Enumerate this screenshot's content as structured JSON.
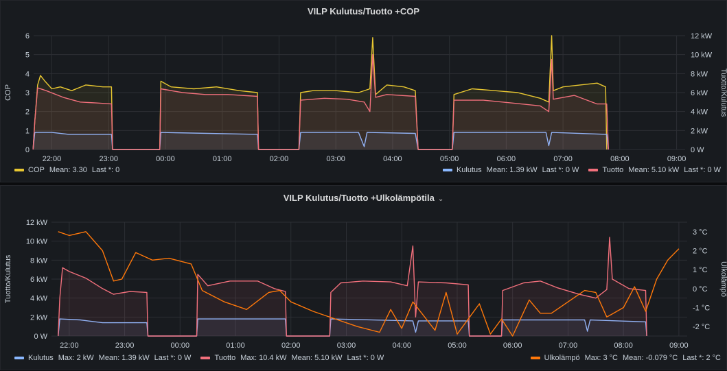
{
  "colors": {
    "cop": "#e8c731",
    "kulutus": "#8ab8ff",
    "tuotto": "#f2707c",
    "ulko": "#ff780a",
    "grid": "#2c2f34"
  },
  "panel1": {
    "title": "VILP Kulutus/Tuotto +COP",
    "legend": {
      "cop": {
        "name": "COP",
        "mean": "Mean: 3.30",
        "last": "Last *: 0"
      },
      "kulutus": {
        "name": "Kulutus",
        "mean": "Mean: 1.39 kW",
        "last": "Last *: 0 W"
      },
      "tuotto": {
        "name": "Tuotto",
        "mean": "Mean: 5.10 kW",
        "last": "Last *: 0 W"
      }
    }
  },
  "panel2": {
    "title": "VILP Kulutus/Tuotto +Ulkolämpötila",
    "title_chevron": "⌄",
    "legend": {
      "kulutus": {
        "name": "Kulutus",
        "max": "Max: 2 kW",
        "mean": "Mean: 1.39 kW",
        "last": "Last *: 0 W"
      },
      "tuotto": {
        "name": "Tuotto",
        "max": "Max: 10.4 kW",
        "mean": "Mean: 5.10 kW",
        "last": "Last *: 0 W"
      },
      "ulko": {
        "name": "Ulkolämpö",
        "max": "Max: 3 °C",
        "mean": "Mean: -0.079 °C",
        "last": "Last *: 2 °C"
      }
    }
  },
  "chart_data": [
    {
      "type": "line",
      "title": "VILP Kulutus/Tuotto +COP",
      "ylabel": "COP",
      "y2label": "Tuotto/Kulutus",
      "x_tick_labels": [
        "22:00",
        "23:00",
        "00:00",
        "01:00",
        "02:00",
        "03:00",
        "04:00",
        "05:00",
        "06:00",
        "07:00",
        "08:00",
        "09:00"
      ],
      "x_range_hours": [
        -0.32,
        11.15
      ],
      "ylim": [
        0,
        6
      ],
      "y_ticks": [
        "0",
        "1",
        "2",
        "3",
        "4",
        "5",
        "6"
      ],
      "y2lim": [
        0,
        12
      ],
      "y2_ticks": [
        "0 W",
        "2 kW",
        "4 kW",
        "6 kW",
        "8 kW",
        "10 kW",
        "12 kW"
      ],
      "series": [
        {
          "name": "COP",
          "axis": "left",
          "points": [
            [
              -0.33,
              0
            ],
            [
              -0.3,
              1.5
            ],
            [
              -0.25,
              3.4
            ],
            [
              -0.2,
              3.9
            ],
            [
              -0.12,
              3.6
            ],
            [
              0,
              3.2
            ],
            [
              0.15,
              3.3
            ],
            [
              0.35,
              3.1
            ],
            [
              0.6,
              3.4
            ],
            [
              0.9,
              3.3
            ],
            [
              1.05,
              3.3
            ],
            [
              1.07,
              0
            ],
            [
              1.9,
              0
            ],
            [
              1.92,
              3.6
            ],
            [
              2.1,
              3.3
            ],
            [
              2.5,
              3.2
            ],
            [
              2.9,
              3.3
            ],
            [
              3.3,
              3.1
            ],
            [
              3.62,
              3.0
            ],
            [
              3.64,
              0
            ],
            [
              4.35,
              0
            ],
            [
              4.38,
              3.0
            ],
            [
              4.6,
              3.1
            ],
            [
              5.0,
              3.1
            ],
            [
              5.4,
              3.0
            ],
            [
              5.6,
              3.2
            ],
            [
              5.65,
              5.9
            ],
            [
              5.7,
              2.9
            ],
            [
              5.9,
              3.4
            ],
            [
              6.2,
              3.3
            ],
            [
              6.4,
              3.1
            ],
            [
              6.45,
              0
            ],
            [
              7.05,
              0
            ],
            [
              7.08,
              2.9
            ],
            [
              7.4,
              3.2
            ],
            [
              7.8,
              3.1
            ],
            [
              8.2,
              3.0
            ],
            [
              8.6,
              2.7
            ],
            [
              8.75,
              2.5
            ],
            [
              8.8,
              6.0
            ],
            [
              8.83,
              3.1
            ],
            [
              9.0,
              3.3
            ],
            [
              9.3,
              3.4
            ],
            [
              9.6,
              3.5
            ],
            [
              9.75,
              3.3
            ],
            [
              9.77,
              0
            ]
          ]
        },
        {
          "name": "Kulutus",
          "axis": "right",
          "unit": "kW",
          "points": [
            [
              -0.33,
              0
            ],
            [
              -0.3,
              1.8
            ],
            [
              0,
              1.8
            ],
            [
              0.3,
              1.6
            ],
            [
              1.05,
              1.6
            ],
            [
              1.07,
              0
            ],
            [
              1.9,
              0
            ],
            [
              1.92,
              1.8
            ],
            [
              3.62,
              1.6
            ],
            [
              3.64,
              0
            ],
            [
              4.35,
              0
            ],
            [
              4.38,
              1.8
            ],
            [
              5.4,
              1.8
            ],
            [
              5.5,
              0.3
            ],
            [
              5.55,
              1.8
            ],
            [
              6.4,
              1.7
            ],
            [
              6.45,
              0
            ],
            [
              7.05,
              0
            ],
            [
              7.08,
              1.8
            ],
            [
              8.7,
              1.8
            ],
            [
              8.75,
              0.4
            ],
            [
              8.8,
              1.8
            ],
            [
              9.77,
              1.6
            ],
            [
              9.8,
              0
            ]
          ]
        },
        {
          "name": "Tuotto",
          "axis": "right",
          "unit": "kW",
          "points": [
            [
              -0.33,
              0
            ],
            [
              -0.3,
              3
            ],
            [
              -0.25,
              6.5
            ],
            [
              -0.1,
              6.2
            ],
            [
              0.2,
              5.5
            ],
            [
              0.5,
              5.0
            ],
            [
              0.8,
              4.9
            ],
            [
              1.05,
              4.8
            ],
            [
              1.07,
              0
            ],
            [
              1.9,
              0
            ],
            [
              1.92,
              6.4
            ],
            [
              2.3,
              6.0
            ],
            [
              2.7,
              5.8
            ],
            [
              3.1,
              5.8
            ],
            [
              3.62,
              5.6
            ],
            [
              3.64,
              0
            ],
            [
              4.35,
              0
            ],
            [
              4.38,
              5.2
            ],
            [
              4.8,
              5.4
            ],
            [
              5.2,
              5.3
            ],
            [
              5.5,
              5.0
            ],
            [
              5.6,
              4.0
            ],
            [
              5.65,
              10.0
            ],
            [
              5.7,
              5.5
            ],
            [
              5.9,
              5.8
            ],
            [
              6.4,
              5.6
            ],
            [
              6.45,
              0
            ],
            [
              7.05,
              0
            ],
            [
              7.08,
              5.2
            ],
            [
              7.6,
              5.2
            ],
            [
              8.1,
              4.9
            ],
            [
              8.6,
              4.6
            ],
            [
              8.75,
              4.0
            ],
            [
              8.8,
              9.5
            ],
            [
              8.83,
              5.3
            ],
            [
              9.2,
              5.7
            ],
            [
              9.6,
              4.8
            ],
            [
              9.77,
              4.8
            ],
            [
              9.8,
              0
            ]
          ]
        }
      ]
    },
    {
      "type": "line",
      "title": "VILP Kulutus/Tuotto +Ulkolämpötila",
      "ylabel": "Tuotto/Kulutus",
      "y2label": "Ulkolämpö",
      "x_tick_labels": [
        "22:00",
        "23:00",
        "00:00",
        "01:00",
        "02:00",
        "03:00",
        "04:00",
        "05:00",
        "06:00",
        "07:00",
        "08:00",
        "09:00"
      ],
      "x_range_hours": [
        -0.32,
        11.15
      ],
      "ylim": [
        0,
        12
      ],
      "y_ticks": [
        "0 W",
        "2 kW",
        "4 kW",
        "6 kW",
        "8 kW",
        "10 kW",
        "12 kW"
      ],
      "y2lim": [
        -2.5,
        3.5
      ],
      "y2_ticks": [
        "-2 °C",
        "-1 °C",
        "0 °C",
        "1 °C",
        "2 °C",
        "3 °C"
      ],
      "series": [
        {
          "name": "Kulutus",
          "axis": "left",
          "unit": "kW",
          "points": [
            [
              -0.2,
              0
            ],
            [
              -0.17,
              1.8
            ],
            [
              0.2,
              1.7
            ],
            [
              0.6,
              1.4
            ],
            [
              1.4,
              1.4
            ],
            [
              1.42,
              0
            ],
            [
              2.3,
              0
            ],
            [
              2.32,
              1.8
            ],
            [
              3.9,
              1.8
            ],
            [
              3.92,
              0
            ],
            [
              4.7,
              0
            ],
            [
              4.72,
              1.8
            ],
            [
              6.2,
              1.6
            ],
            [
              6.25,
              0.4
            ],
            [
              6.3,
              1.6
            ],
            [
              7.2,
              1.6
            ],
            [
              7.22,
              0
            ],
            [
              7.8,
              0
            ],
            [
              7.82,
              1.7
            ],
            [
              9.3,
              1.7
            ],
            [
              9.35,
              0.5
            ],
            [
              9.4,
              1.7
            ],
            [
              10.4,
              1.5
            ],
            [
              10.42,
              0
            ]
          ]
        },
        {
          "name": "Tuotto",
          "axis": "left",
          "unit": "kW",
          "points": [
            [
              -0.2,
              0
            ],
            [
              -0.17,
              4
            ],
            [
              -0.12,
              7.2
            ],
            [
              0.0,
              6.8
            ],
            [
              0.3,
              6.1
            ],
            [
              0.6,
              5.0
            ],
            [
              0.8,
              4.4
            ],
            [
              1.1,
              4.7
            ],
            [
              1.4,
              4.6
            ],
            [
              1.42,
              0
            ],
            [
              2.3,
              0
            ],
            [
              2.32,
              6.5
            ],
            [
              2.5,
              5.3
            ],
            [
              2.9,
              5.8
            ],
            [
              3.4,
              5.8
            ],
            [
              3.7,
              5.0
            ],
            [
              3.9,
              4.7
            ],
            [
              3.92,
              0
            ],
            [
              4.7,
              0
            ],
            [
              4.72,
              4.6
            ],
            [
              4.9,
              5.6
            ],
            [
              5.3,
              5.8
            ],
            [
              5.8,
              5.7
            ],
            [
              6.1,
              5.3
            ],
            [
              6.2,
              9.5
            ],
            [
              6.25,
              2.0
            ],
            [
              6.3,
              5.7
            ],
            [
              6.8,
              5.6
            ],
            [
              7.2,
              5.4
            ],
            [
              7.22,
              0
            ],
            [
              7.8,
              0
            ],
            [
              7.82,
              4.8
            ],
            [
              8.2,
              5.6
            ],
            [
              8.5,
              5.8
            ],
            [
              8.8,
              5.1
            ],
            [
              9.2,
              4.4
            ],
            [
              9.5,
              4.0
            ],
            [
              9.7,
              4.9
            ],
            [
              9.75,
              10.4
            ],
            [
              9.8,
              6.0
            ],
            [
              10.1,
              5.0
            ],
            [
              10.4,
              4.8
            ],
            [
              10.42,
              0
            ]
          ]
        },
        {
          "name": "Ulkolämpö",
          "axis": "right",
          "unit": "°C",
          "points": [
            [
              -0.2,
              3.0
            ],
            [
              0.0,
              2.8
            ],
            [
              0.3,
              3.0
            ],
            [
              0.6,
              2.0
            ],
            [
              0.8,
              0.4
            ],
            [
              0.95,
              0.5
            ],
            [
              1.2,
              1.9
            ],
            [
              1.5,
              1.5
            ],
            [
              1.8,
              1.6
            ],
            [
              2.2,
              1.3
            ],
            [
              2.4,
              -0.1
            ],
            [
              2.8,
              -0.7
            ],
            [
              3.2,
              -1.1
            ],
            [
              3.6,
              -0.2
            ],
            [
              3.8,
              -0.1
            ],
            [
              4.0,
              -0.7
            ],
            [
              4.4,
              -1.2
            ],
            [
              4.8,
              -1.6
            ],
            [
              5.2,
              -2.0
            ],
            [
              5.6,
              -2.3
            ],
            [
              5.8,
              -1.1
            ],
            [
              6.0,
              -2.1
            ],
            [
              6.2,
              -0.7
            ],
            [
              6.6,
              -2.2
            ],
            [
              6.8,
              -0.2
            ],
            [
              7.0,
              -2.4
            ],
            [
              7.4,
              -0.8
            ],
            [
              7.6,
              -2.4
            ],
            [
              7.8,
              -1.6
            ],
            [
              8.0,
              -2.5
            ],
            [
              8.3,
              -0.6
            ],
            [
              8.5,
              -1.3
            ],
            [
              8.7,
              -1.3
            ],
            [
              9.0,
              -0.7
            ],
            [
              9.3,
              -0.1
            ],
            [
              9.5,
              -0.2
            ],
            [
              9.7,
              -1.5
            ],
            [
              10.0,
              -1.0
            ],
            [
              10.2,
              0.1
            ],
            [
              10.4,
              -1.2
            ],
            [
              10.6,
              0.5
            ],
            [
              10.8,
              1.5
            ],
            [
              11.0,
              2.1
            ]
          ]
        }
      ]
    }
  ]
}
